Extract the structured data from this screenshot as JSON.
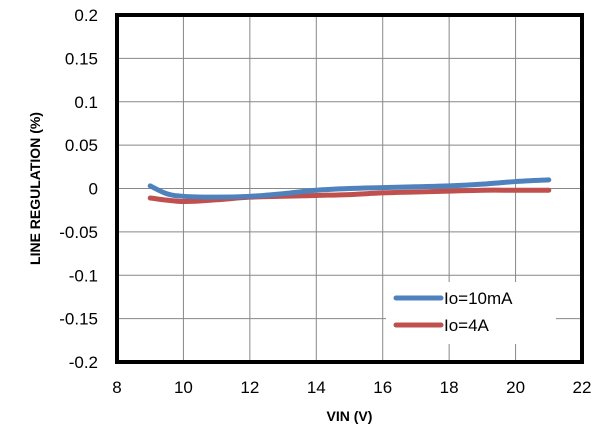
{
  "chart_data": {
    "type": "line",
    "xlabel": "VIN (V)",
    "ylabel": "LINE REGULATION (%)",
    "xlim": [
      8,
      22
    ],
    "ylim": [
      -0.2,
      0.2
    ],
    "x_ticks": [
      "8",
      "10",
      "12",
      "14",
      "16",
      "18",
      "20",
      "22"
    ],
    "y_ticks": [
      "0.2",
      "0.15",
      "0.1",
      "0.05",
      "0",
      "-0.05",
      "-0.1",
      "-0.15",
      "-0.2"
    ],
    "grid": true,
    "legend_position": "bottom-right",
    "series": [
      {
        "name": "Io=10mA",
        "color": "#4F81BD",
        "x": [
          9.0,
          9.5,
          10.0,
          11.0,
          12.0,
          13.0,
          14.0,
          15.0,
          16.0,
          17.0,
          18.0,
          19.0,
          20.0,
          21.0
        ],
        "y": [
          0.003,
          -0.006,
          -0.009,
          -0.01,
          -0.009,
          -0.006,
          -0.002,
          0.0,
          0.001,
          0.002,
          0.003,
          0.005,
          0.008,
          0.01
        ]
      },
      {
        "name": "Io=4A",
        "color": "#C0504D",
        "x": [
          9.0,
          10.0,
          11.0,
          12.0,
          13.0,
          14.0,
          15.0,
          16.0,
          17.0,
          18.0,
          19.0,
          20.0,
          21.0
        ],
        "y": [
          -0.011,
          -0.015,
          -0.013,
          -0.01,
          -0.009,
          -0.008,
          -0.007,
          -0.005,
          -0.004,
          -0.003,
          -0.002,
          -0.002,
          -0.002
        ]
      }
    ]
  }
}
